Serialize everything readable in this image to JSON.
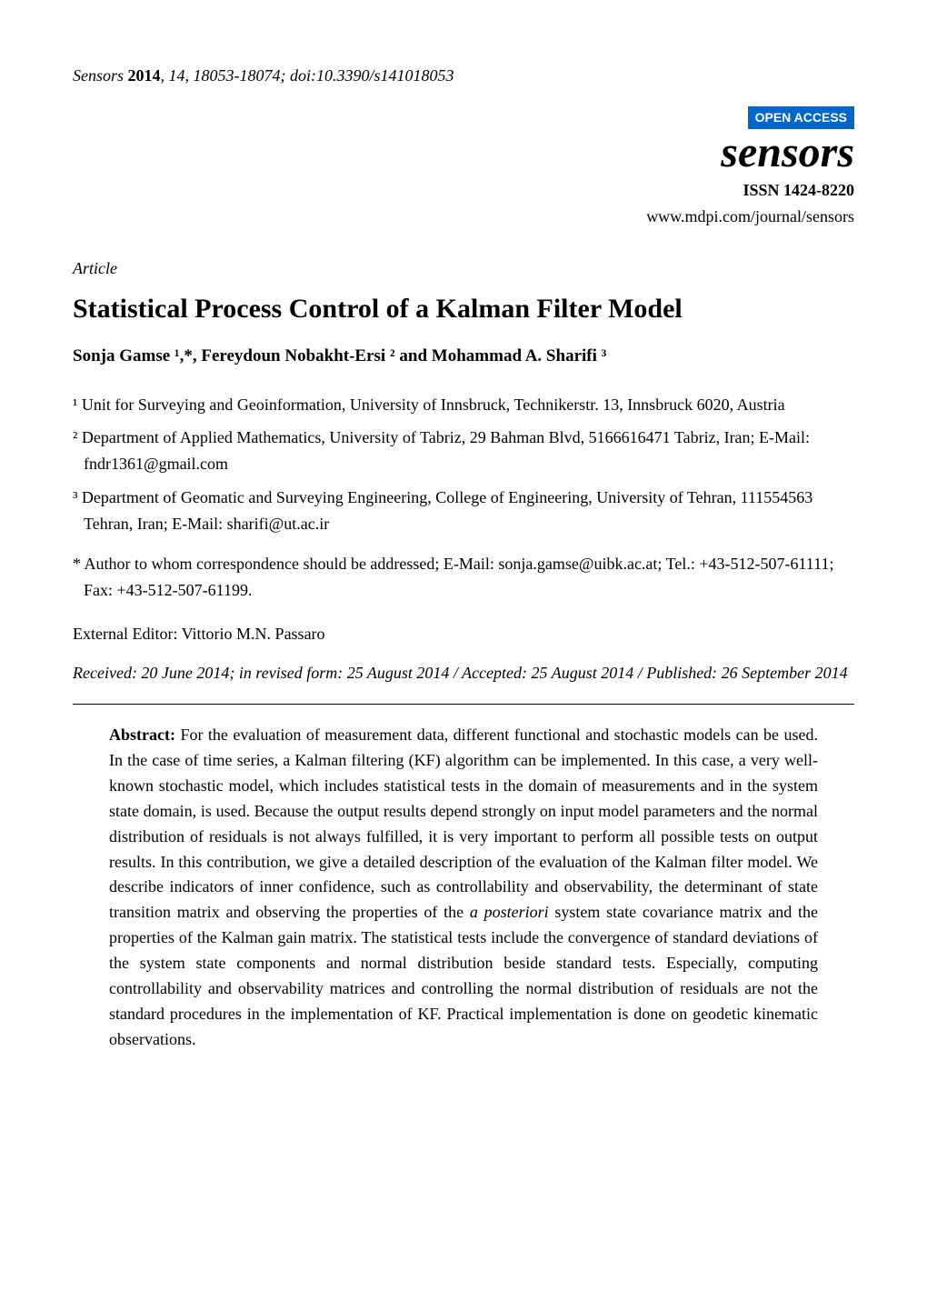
{
  "header": {
    "journal_ref": "Sensors",
    "year": "2014",
    "volume": "14",
    "pages": "18053-18074",
    "doi": "doi:10.3390/s141018053"
  },
  "journal": {
    "open_access": "OPEN ACCESS",
    "name": "sensors",
    "issn": "ISSN 1424-8220",
    "url": "www.mdpi.com/journal/sensors"
  },
  "article_type": "Article",
  "title": "Statistical Process Control of a Kalman Filter Model",
  "authors": "Sonja Gamse ¹,*, Fereydoun Nobakht-Ersi ² and Mohammad A. Sharifi ³",
  "affiliations": {
    "a1": "¹ Unit for Surveying and Geoinformation, University of Innsbruck, Technikerstr. 13, Innsbruck 6020, Austria",
    "a2": "² Department of Applied Mathematics, University of Tabriz, 29 Bahman Blvd, 5166616471 Tabriz, Iran; E-Mail: fndr1361@gmail.com",
    "a3": "³ Department of Geomatic and Surveying Engineering, College of Engineering, University of Tehran, 111554563 Tehran, Iran; E-Mail: sharifi@ut.ac.ir"
  },
  "corresponding": "* Author to whom correspondence should be addressed; E-Mail: sonja.gamse@uibk.ac.at; Tel.: +43-512-507-61111; Fax: +43-512-507-61199.",
  "editor": "External Editor: Vittorio M.N. Passaro",
  "dates": "Received: 20 June 2014; in revised form: 25 August 2014 / Accepted: 25 August 2014 / Published: 26 September 2014",
  "abstract": {
    "label": "Abstract:",
    "text": " For the evaluation of measurement data, different functional and stochastic models can be used. In the case of time series, a Kalman filtering (KF) algorithm can be implemented. In this case, a very well-known stochastic model, which includes statistical tests in the domain of measurements and in the system state domain, is used. Because the output results depend strongly on input model parameters and the normal distribution of residuals is not always fulfilled, it is very important to perform all possible tests on output results. In this contribution, we give a detailed description of the evaluation of the Kalman filter model. We describe indicators of inner confidence, such as controllability and observability, the determinant of state transition matrix and observing the properties of the ",
    "italic": "a posteriori",
    "text2": " system state covariance matrix and the properties of the Kalman gain matrix. The statistical tests include the convergence of standard deviations of the system state components and normal distribution beside standard tests. Especially, computing controllability and observability matrices and controlling the normal distribution of residuals are not the standard procedures in the implementation of KF. Practical implementation is done on geodetic kinematic observations."
  }
}
